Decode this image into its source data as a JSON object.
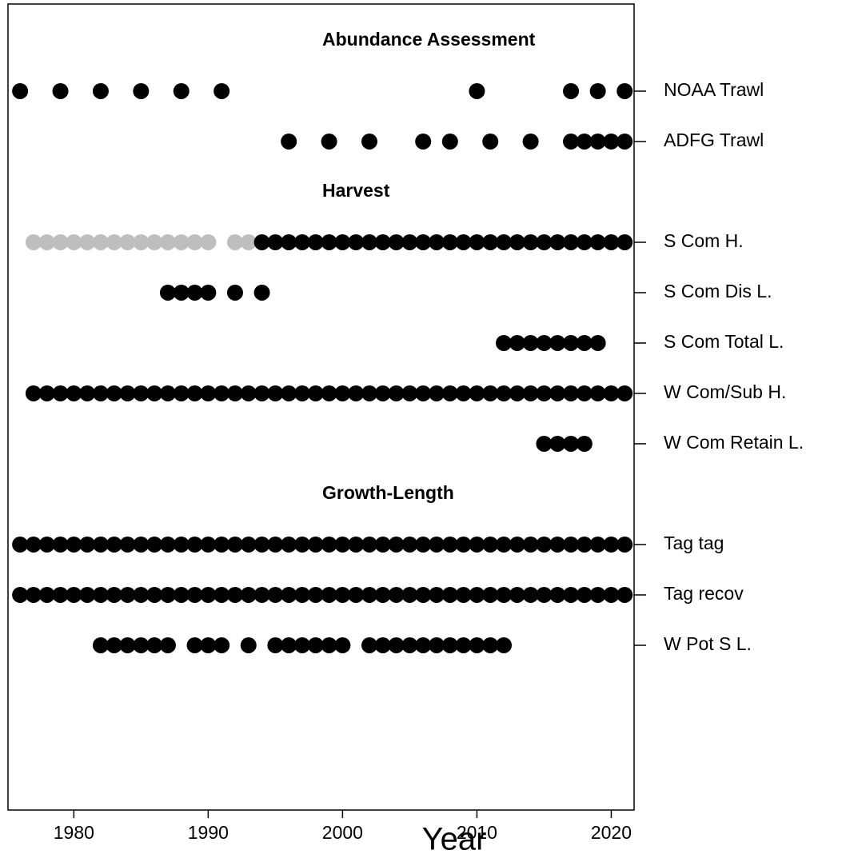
{
  "chart_data": {
    "type": "dot_timeline",
    "xlabel": "Year",
    "xlim": [
      1975.1,
      2021.7
    ],
    "xticks": [
      1980,
      1990,
      2000,
      2010,
      2020
    ],
    "ylim": [
      -2.27,
      13.73
    ],
    "yticks": [
      {
        "value": 12,
        "label": "NOAA Trawl"
      },
      {
        "value": 11,
        "label": "ADFG Trawl"
      },
      {
        "value": 9,
        "label": "S Com H."
      },
      {
        "value": 8,
        "label": "S Com Dis L."
      },
      {
        "value": 7,
        "label": "S Com Total L."
      },
      {
        "value": 6,
        "label": "W Com/Sub H."
      },
      {
        "value": 5,
        "label": "W Com Retain L."
      },
      {
        "value": 3,
        "label": "Tag tag"
      },
      {
        "value": 2,
        "label": "Tag recov"
      },
      {
        "value": 1,
        "label": "W Pot S L."
      }
    ],
    "annotations": [
      {
        "text": "Abundance Assessment",
        "y": 13
      },
      {
        "text": "Harvest",
        "y": 10
      },
      {
        "text": "Growth-Length",
        "y": 4
      }
    ],
    "series": [
      {
        "y": 12,
        "color": "#000000",
        "x": [
          1976,
          1979,
          1982,
          1985,
          1988,
          1991,
          2010,
          2017,
          2019,
          2021
        ]
      },
      {
        "y": 11,
        "color": "#000000",
        "x": [
          1996,
          1999,
          2002,
          2006,
          2008,
          2011,
          2014,
          2017,
          2018,
          2019,
          2020,
          2021
        ]
      },
      {
        "y": 9,
        "color": [
          "#bebebe",
          "#bebebe",
          "#bebebe",
          "#bebebe",
          "#bebebe",
          "#bebebe",
          "#bebebe",
          "#bebebe",
          "#bebebe",
          "#bebebe",
          "#bebebe",
          "#bebebe",
          "#bebebe",
          "#bebebe",
          "#bebebe",
          "#bebebe",
          "#000000",
          "#000000",
          "#000000",
          "#000000",
          "#000000",
          "#000000",
          "#000000",
          "#000000",
          "#000000",
          "#000000",
          "#000000",
          "#000000",
          "#000000",
          "#000000",
          "#000000",
          "#000000",
          "#000000",
          "#000000",
          "#000000",
          "#000000",
          "#000000",
          "#000000",
          "#000000",
          "#000000",
          "#000000",
          "#000000",
          "#000000",
          "#000000"
        ],
        "x": [
          1977,
          1978,
          1979,
          1980,
          1981,
          1982,
          1983,
          1984,
          1985,
          1986,
          1987,
          1988,
          1989,
          1990,
          1992,
          1993,
          1994,
          1995,
          1996,
          1997,
          1998,
          1999,
          2000,
          2001,
          2002,
          2003,
          2004,
          2005,
          2006,
          2007,
          2008,
          2009,
          2010,
          2011,
          2012,
          2013,
          2014,
          2015,
          2016,
          2017,
          2018,
          2019,
          2020,
          2021
        ]
      },
      {
        "y": 8,
        "color": "#000000",
        "x": [
          1987,
          1988,
          1989,
          1990,
          1992,
          1994
        ]
      },
      {
        "y": 7,
        "color": "#000000",
        "x": [
          2012,
          2013,
          2014,
          2015,
          2016,
          2017,
          2018,
          2019
        ]
      },
      {
        "y": 6,
        "color": "#000000",
        "x": [
          1977,
          1978,
          1979,
          1980,
          1981,
          1982,
          1983,
          1984,
          1985,
          1986,
          1987,
          1988,
          1989,
          1990,
          1991,
          1992,
          1993,
          1994,
          1995,
          1996,
          1997,
          1998,
          1999,
          2000,
          2001,
          2002,
          2003,
          2004,
          2005,
          2006,
          2007,
          2008,
          2009,
          2010,
          2011,
          2012,
          2013,
          2014,
          2015,
          2016,
          2017,
          2018,
          2019,
          2020,
          2021
        ]
      },
      {
        "y": 5,
        "color": "#000000",
        "x": [
          2015,
          2016,
          2017,
          2018
        ]
      },
      {
        "y": 3,
        "color": "#000000",
        "x": [
          1976,
          1977,
          1978,
          1979,
          1980,
          1981,
          1982,
          1983,
          1984,
          1985,
          1986,
          1987,
          1988,
          1989,
          1990,
          1991,
          1992,
          1993,
          1994,
          1995,
          1996,
          1997,
          1998,
          1999,
          2000,
          2001,
          2002,
          2003,
          2004,
          2005,
          2006,
          2007,
          2008,
          2009,
          2010,
          2011,
          2012,
          2013,
          2014,
          2015,
          2016,
          2017,
          2018,
          2019,
          2020,
          2021
        ]
      },
      {
        "y": 2,
        "color": "#000000",
        "x": [
          1976,
          1977,
          1978,
          1979,
          1980,
          1981,
          1982,
          1983,
          1984,
          1985,
          1986,
          1987,
          1988,
          1989,
          1990,
          1991,
          1992,
          1993,
          1994,
          1995,
          1996,
          1997,
          1998,
          1999,
          2000,
          2001,
          2002,
          2003,
          2004,
          2005,
          2006,
          2007,
          2008,
          2009,
          2010,
          2011,
          2012,
          2013,
          2014,
          2015,
          2016,
          2017,
          2018,
          2019,
          2020,
          2021
        ]
      },
      {
        "y": 1,
        "color": "#000000",
        "x": [
          1982,
          1983,
          1984,
          1985,
          1986,
          1987,
          1989,
          1990,
          1991,
          1993,
          1995,
          1996,
          1997,
          1998,
          1999,
          2000,
          2002,
          2003,
          2004,
          2005,
          2006,
          2007,
          2008,
          2009,
          2010,
          2011,
          2012
        ]
      }
    ]
  }
}
